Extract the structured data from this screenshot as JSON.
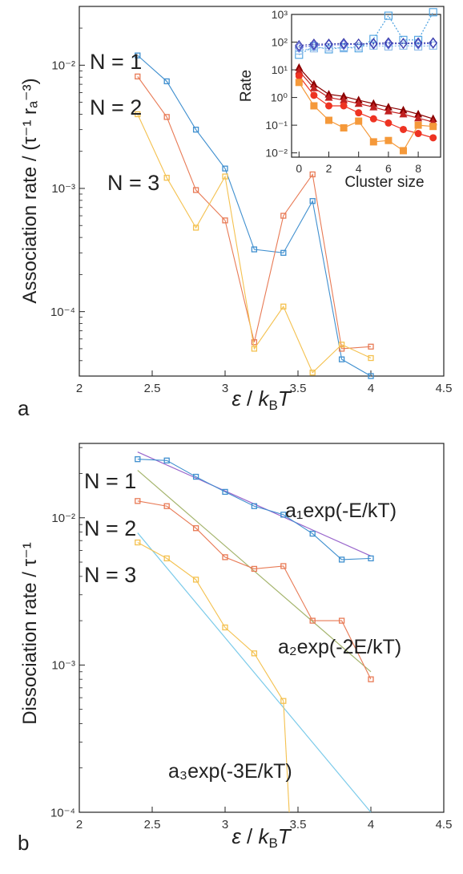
{
  "panels": {
    "a": {
      "label": "a"
    },
    "b": {
      "label": "b"
    }
  },
  "chart_data": [
    {
      "id": "association",
      "type": "line",
      "ylabel": "Association rate / (τ⁻¹ rₐ⁻³)",
      "xlabel": "ε / k_B T",
      "xlim": [
        2,
        4.5
      ],
      "ylim": [
        3e-05,
        0.03
      ],
      "yscale": "log",
      "grid": false,
      "xticks": [
        "2",
        "2.5",
        "3",
        "3.5",
        "4",
        "4.5"
      ],
      "yticks": [
        {
          "value": 0.01,
          "label": "10⁻²"
        },
        {
          "value": 0.001,
          "label": "10⁻³"
        },
        {
          "value": 0.0001,
          "label": "10⁻⁴"
        }
      ],
      "x": [
        2.4,
        2.6,
        2.8,
        3.0,
        3.2,
        3.4,
        3.6,
        3.8,
        4.0
      ],
      "series": [
        {
          "name": "N = 1",
          "color": "#3f8fcf",
          "values": [
            0.012,
            0.0074,
            0.003,
            0.00145,
            0.00032,
            0.0003,
            0.00079,
            4.1e-05,
            3e-05
          ]
        },
        {
          "name": "N = 2",
          "color": "#e87a55",
          "values": [
            0.0081,
            0.0038,
            0.00097,
            0.00055,
            5.65e-05,
            0.0006,
            0.0013,
            5e-05,
            5.2e-05
          ]
        },
        {
          "name": "N = 3",
          "color": "#f4c14f",
          "values": [
            0.004,
            0.00122,
            0.00048,
            0.00125,
            5e-05,
            0.00011,
            3.2e-05,
            5.4e-05,
            4.2e-05
          ]
        }
      ],
      "labels": [
        "N = 1",
        "N = 2",
        "N = 3"
      ]
    },
    {
      "id": "inset",
      "type": "line",
      "ylabel": "Rate",
      "xlabel": "Cluster size",
      "xlim": [
        -0.5,
        9.5
      ],
      "ylim": [
        0.007,
        1000
      ],
      "yscale": "log",
      "xticks": [
        "0",
        "2",
        "4",
        "6",
        "8"
      ],
      "yticks": [
        {
          "value": 1000,
          "label": "10³"
        },
        {
          "value": 100,
          "label": "10²"
        },
        {
          "value": 10,
          "label": "10¹"
        },
        {
          "value": 1,
          "label": "10⁰"
        },
        {
          "value": 0.1,
          "label": "10⁻¹"
        },
        {
          "value": 0.01,
          "label": "10⁻²"
        }
      ],
      "x": [
        0,
        1,
        2,
        3,
        4,
        5,
        6,
        7,
        8,
        9
      ],
      "series": [
        {
          "color": "#4aa0e0",
          "marker": "square-open",
          "dotted": true,
          "values": [
            35,
            70,
            55,
            65,
            60,
            130,
            900,
            120,
            120,
            1200
          ]
        },
        {
          "color": "#8ab8e8",
          "marker": "square-open",
          "dotted": true,
          "values": [
            50,
            60,
            65,
            60,
            70,
            75,
            70,
            75,
            70,
            75
          ]
        },
        {
          "color": "#5a6ad8",
          "marker": "diamond-open",
          "dotted": true,
          "values": [
            65,
            75,
            80,
            80,
            85,
            85,
            85,
            90,
            85,
            90
          ]
        },
        {
          "color": "#3a3aa8",
          "marker": "diamond-open",
          "dotted": true,
          "values": [
            75,
            85,
            85,
            90,
            85,
            90,
            95,
            90,
            95,
            95
          ]
        },
        {
          "color": "#8b0000",
          "marker": "triangle-filled",
          "values": [
            12,
            3,
            1.3,
            1.1,
            0.8,
            0.6,
            0.45,
            0.35,
            0.25,
            0.17
          ]
        },
        {
          "color": "#c02020",
          "marker": "triangle-filled",
          "values": [
            9,
            2.2,
            1.0,
            0.8,
            0.6,
            0.45,
            0.32,
            0.25,
            0.18,
            0.13
          ]
        },
        {
          "color": "#ee3322",
          "marker": "circle-filled",
          "values": [
            6,
            1.2,
            0.5,
            0.5,
            0.28,
            0.17,
            0.12,
            0.07,
            0.05,
            0.035
          ]
        },
        {
          "color": "#f5993a",
          "marker": "square-filled",
          "values": [
            3.5,
            0.5,
            0.15,
            0.08,
            0.14,
            0.025,
            0.028,
            0.012,
            0.1,
            0.09
          ]
        }
      ]
    },
    {
      "id": "dissociation",
      "type": "line",
      "ylabel": "Dissociation rate / τ⁻¹",
      "xlabel": "ε / k_B T",
      "xlim": [
        2,
        4.5
      ],
      "ylim": [
        0.0001,
        0.032
      ],
      "yscale": "log",
      "grid": false,
      "xticks": [
        "2",
        "2.5",
        "3",
        "3.5",
        "4",
        "4.5"
      ],
      "yticks": [
        {
          "value": 0.01,
          "label": "10⁻²"
        },
        {
          "value": 0.001,
          "label": "10⁻³"
        },
        {
          "value": 0.0001,
          "label": "10⁻⁴"
        }
      ],
      "x": [
        2.4,
        2.6,
        2.8,
        3.0,
        3.2,
        3.4,
        3.6,
        3.8,
        4.0
      ],
      "series": [
        {
          "name": "N = 1",
          "color": "#3f8fcf",
          "values": [
            0.025,
            0.0245,
            0.019,
            0.015,
            0.012,
            0.0105,
            0.0078,
            0.0052,
            0.0053
          ]
        },
        {
          "name": "N = 2",
          "color": "#e87a55",
          "values": [
            0.013,
            0.012,
            0.0085,
            0.0054,
            0.0045,
            0.0047,
            0.002,
            0.002,
            0.0008
          ]
        },
        {
          "name": "N = 3",
          "color": "#f4c14f",
          "values": [
            0.0068,
            0.0053,
            0.0038,
            0.0018,
            0.0012,
            0.00057,
            null,
            null,
            null
          ]
        }
      ],
      "fits": [
        {
          "label": "a₁exp(-E/kT)",
          "color": "#9966cc",
          "x": [
            2.4,
            4.0
          ],
          "values": [
            0.028,
            0.0055
          ]
        },
        {
          "label": "a₂exp(-2E/kT)",
          "color": "#a4b46c",
          "x": [
            2.4,
            4.0
          ],
          "values": [
            0.021,
            0.0009
          ]
        },
        {
          "label": "a₃exp(-3E/kT)",
          "color": "#7ccbea",
          "x": [
            2.4,
            4.0
          ],
          "values": [
            0.0079,
            0.0001
          ]
        }
      ],
      "n3_tail": {
        "x": [
          3.4,
          3.44
        ],
        "values": [
          0.00057,
          0.0001
        ]
      },
      "labels": [
        "N = 1",
        "N = 2",
        "N = 3"
      ]
    }
  ]
}
